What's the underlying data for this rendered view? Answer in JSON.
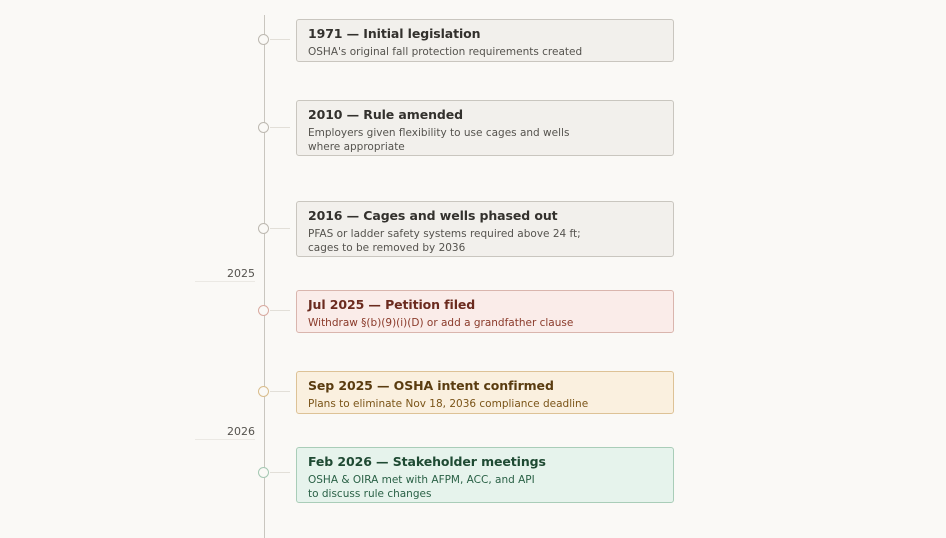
{
  "timeline": {
    "years": [
      {
        "label": "2025"
      },
      {
        "label": "2026"
      }
    ],
    "events": [
      {
        "title": "1971 — Initial legislation",
        "lines": [
          "OSHA's original fall protection requirements created"
        ],
        "tone": "neutral"
      },
      {
        "title": "2010 — Rule amended",
        "lines": [
          "Employers given flexibility to use cages and wells",
          "where appropriate"
        ],
        "tone": "neutral"
      },
      {
        "title": "2016 — Cages and wells phased out",
        "lines": [
          "PFAS or ladder safety systems required above 24 ft;",
          "cages to be removed by 2036"
        ],
        "tone": "neutral"
      },
      {
        "title": "Jul 2025 — Petition filed",
        "lines": [
          "Withdraw §(b)(9)(i)(D) or add a grandfather clause"
        ],
        "tone": "red"
      },
      {
        "title": "Sep 2025 — OSHA intent confirmed",
        "lines": [
          "Plans to eliminate Nov 18, 2036 compliance deadline"
        ],
        "tone": "amber"
      },
      {
        "title": "Feb 2026 — Stakeholder meetings",
        "lines": [
          "OSHA & OIRA met with AFPM, ACC, and API",
          "to discuss rule changes"
        ],
        "tone": "green"
      }
    ],
    "colors": {
      "neutral_bg": "#f2f0ec",
      "red_bg": "#faece9",
      "amber_bg": "#faf0df",
      "green_bg": "#e6f3ec"
    }
  }
}
